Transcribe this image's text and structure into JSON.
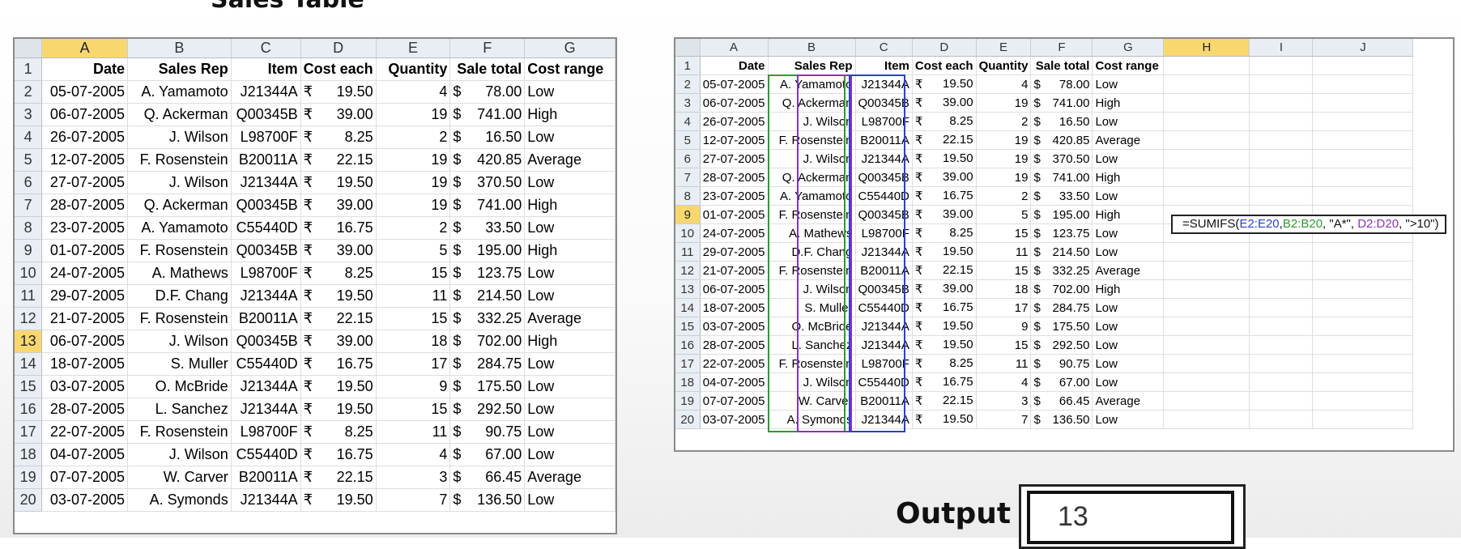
{
  "page_title": "Sales Table",
  "columns_left": [
    "A",
    "B",
    "C",
    "D",
    "E",
    "F",
    "G"
  ],
  "columns_right": [
    "A",
    "B",
    "C",
    "D",
    "E",
    "F",
    "G",
    "H",
    "I",
    "J"
  ],
  "header_row": [
    "Date",
    "Sales Rep",
    "Item",
    "Cost each",
    "Quantity",
    "Sale total",
    "Cost range"
  ],
  "rows": [
    {
      "n": "2",
      "date": "05-07-2005",
      "rep": "A. Yamamoto",
      "item": "J21344A",
      "cur": "₹",
      "cost": "19.50",
      "qty": "4",
      "sym": "$",
      "total": "78.00",
      "range": "Low"
    },
    {
      "n": "3",
      "date": "06-07-2005",
      "rep": "Q. Ackerman",
      "item": "Q00345B",
      "cur": "₹",
      "cost": "39.00",
      "qty": "19",
      "sym": "$",
      "total": "741.00",
      "range": "High"
    },
    {
      "n": "4",
      "date": "26-07-2005",
      "rep": "J. Wilson",
      "item": "L98700F",
      "cur": "₹",
      "cost": "8.25",
      "qty": "2",
      "sym": "$",
      "total": "16.50",
      "range": "Low"
    },
    {
      "n": "5",
      "date": "12-07-2005",
      "rep": "F. Rosenstein",
      "item": "B20011A",
      "cur": "₹",
      "cost": "22.15",
      "qty": "19",
      "sym": "$",
      "total": "420.85",
      "range": "Average"
    },
    {
      "n": "6",
      "date": "27-07-2005",
      "rep": "J. Wilson",
      "item": "J21344A",
      "cur": "₹",
      "cost": "19.50",
      "qty": "19",
      "sym": "$",
      "total": "370.50",
      "range": "Low"
    },
    {
      "n": "7",
      "date": "28-07-2005",
      "rep": "Q. Ackerman",
      "item": "Q00345B",
      "cur": "₹",
      "cost": "39.00",
      "qty": "19",
      "sym": "$",
      "total": "741.00",
      "range": "High"
    },
    {
      "n": "8",
      "date": "23-07-2005",
      "rep": "A. Yamamoto",
      "item": "C55440D",
      "cur": "₹",
      "cost": "16.75",
      "qty": "2",
      "sym": "$",
      "total": "33.50",
      "range": "Low"
    },
    {
      "n": "9",
      "date": "01-07-2005",
      "rep": "F. Rosenstein",
      "item": "Q00345B",
      "cur": "₹",
      "cost": "39.00",
      "qty": "5",
      "sym": "$",
      "total": "195.00",
      "range": "High"
    },
    {
      "n": "10",
      "date": "24-07-2005",
      "rep": "A. Mathews",
      "item": "L98700F",
      "cur": "₹",
      "cost": "8.25",
      "qty": "15",
      "sym": "$",
      "total": "123.75",
      "range": "Low"
    },
    {
      "n": "11",
      "date": "29-07-2005",
      "rep": "D.F. Chang",
      "item": "J21344A",
      "cur": "₹",
      "cost": "19.50",
      "qty": "11",
      "sym": "$",
      "total": "214.50",
      "range": "Low"
    },
    {
      "n": "12",
      "date": "21-07-2005",
      "rep": "F. Rosenstein",
      "item": "B20011A",
      "cur": "₹",
      "cost": "22.15",
      "qty": "15",
      "sym": "$",
      "total": "332.25",
      "range": "Average"
    },
    {
      "n": "13",
      "date": "06-07-2005",
      "rep": "J. Wilson",
      "item": "Q00345B",
      "cur": "₹",
      "cost": "39.00",
      "qty": "18",
      "sym": "$",
      "total": "702.00",
      "range": "High"
    },
    {
      "n": "14",
      "date": "18-07-2005",
      "rep": "S. Muller",
      "item": "C55440D",
      "cur": "₹",
      "cost": "16.75",
      "qty": "17",
      "sym": "$",
      "total": "284.75",
      "range": "Low"
    },
    {
      "n": "15",
      "date": "03-07-2005",
      "rep": "O. McBride",
      "item": "J21344A",
      "cur": "₹",
      "cost": "19.50",
      "qty": "9",
      "sym": "$",
      "total": "175.50",
      "range": "Low"
    },
    {
      "n": "16",
      "date": "28-07-2005",
      "rep": "L. Sanchez",
      "item": "J21344A",
      "cur": "₹",
      "cost": "19.50",
      "qty": "15",
      "sym": "$",
      "total": "292.50",
      "range": "Low"
    },
    {
      "n": "17",
      "date": "22-07-2005",
      "rep": "F. Rosenstein",
      "item": "L98700F",
      "cur": "₹",
      "cost": "8.25",
      "qty": "11",
      "sym": "$",
      "total": "90.75",
      "range": "Low"
    },
    {
      "n": "18",
      "date": "04-07-2005",
      "rep": "J. Wilson",
      "item": "C55440D",
      "cur": "₹",
      "cost": "16.75",
      "qty": "4",
      "sym": "$",
      "total": "67.00",
      "range": "Low"
    },
    {
      "n": "19",
      "date": "07-07-2005",
      "rep": "W. Carver",
      "item": "B20011A",
      "cur": "₹",
      "cost": "22.15",
      "qty": "3",
      "sym": "$",
      "total": "66.45",
      "range": "Average"
    },
    {
      "n": "20",
      "date": "03-07-2005",
      "rep": "A. Symonds",
      "item": "J21344A",
      "cur": "₹",
      "cost": "19.50",
      "qty": "7",
      "sym": "$",
      "total": "136.50",
      "range": "Low"
    }
  ],
  "left_selected": {
    "column": "A",
    "row": "13"
  },
  "right_selected": {
    "column": "H",
    "row": "9"
  },
  "formula": {
    "prefix": "=SUMIFS(",
    "sum_range": "E2:E20",
    "sep1": ",",
    "criteria_range1": "B2:B20",
    "criteria1": ", \"A*\", ",
    "criteria_range2": "D2:D20",
    "criteria2": ", \">10\")"
  },
  "output": {
    "label": "Output",
    "value": "13"
  },
  "colors": {
    "sum_range": "#2a3fd4",
    "criteria_range1": "#2e9a33",
    "criteria_range2": "#8b2fc9",
    "selection": "#f8d86e"
  }
}
